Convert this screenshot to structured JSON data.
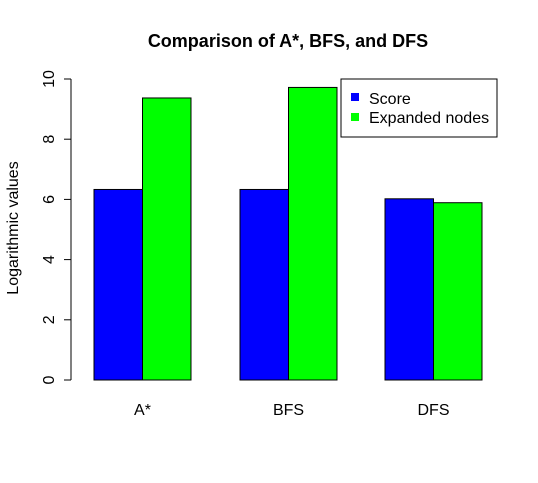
{
  "chart_data": {
    "type": "bar",
    "title": "Comparison of A*, BFS, and DFS",
    "xlabel": "",
    "ylabel": "Logarithmic values",
    "categories": [
      "A*",
      "BFS",
      "DFS"
    ],
    "series": [
      {
        "name": "Score",
        "values": [
          6.33,
          6.33,
          6.02
        ],
        "color": "#0000ff"
      },
      {
        "name": "Expanded nodes",
        "values": [
          9.37,
          9.72,
          5.89
        ],
        "color": "#00ff00"
      }
    ],
    "ylim": [
      0,
      10
    ],
    "yticks": [
      "0",
      "2",
      "4",
      "6",
      "8",
      "10"
    ],
    "grid": false,
    "legend_position": "top-right"
  }
}
